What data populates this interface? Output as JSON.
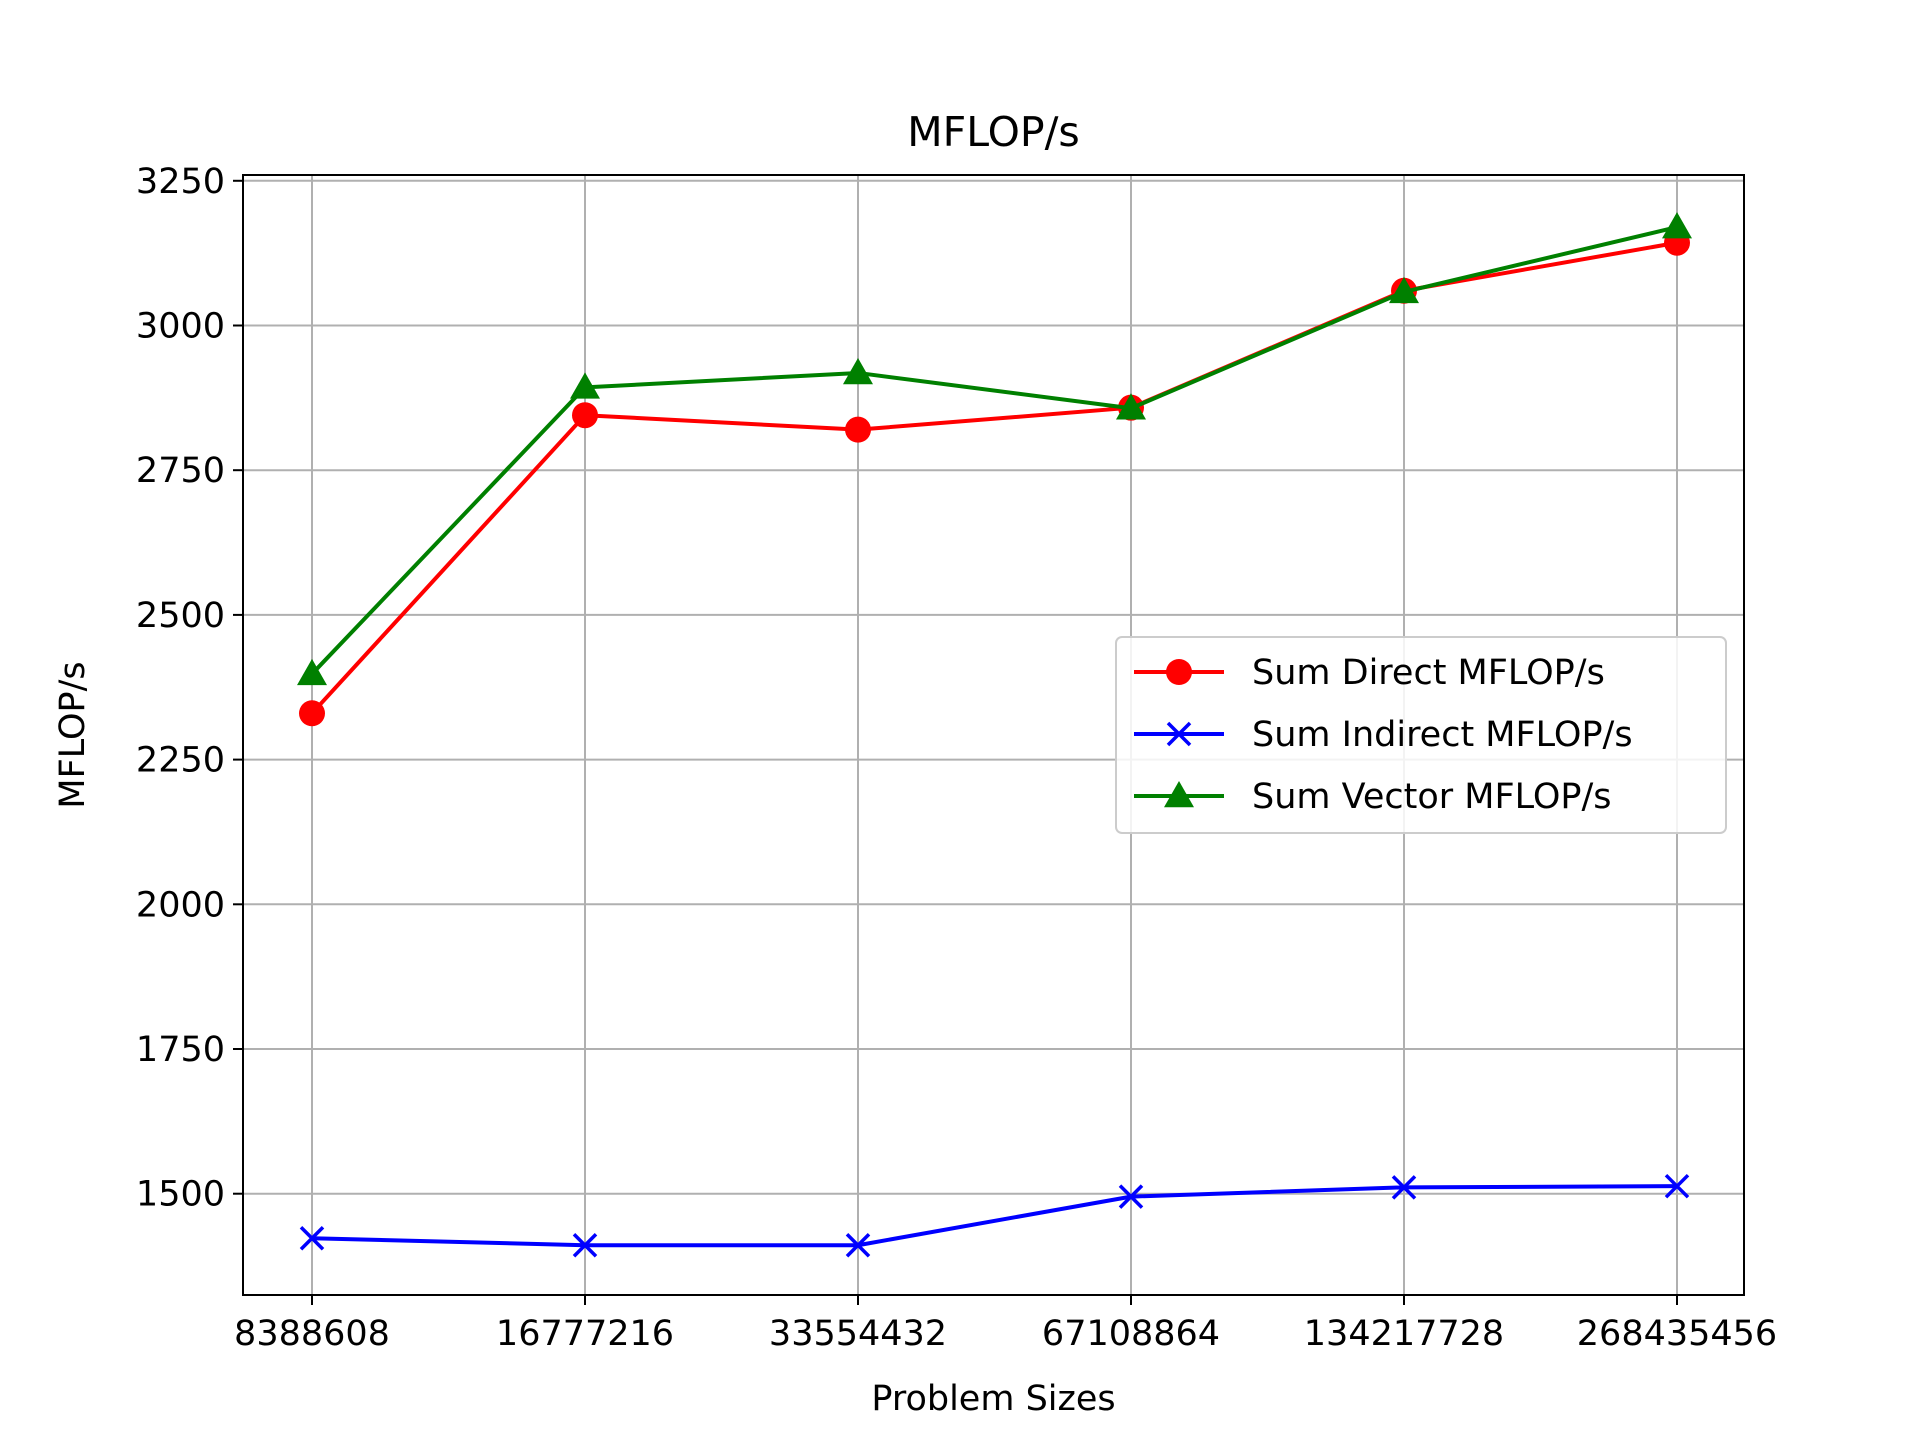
{
  "chart_data": {
    "type": "line",
    "title": "MFLOP/s",
    "xlabel": "Problem Sizes",
    "ylabel": "MFLOP/s",
    "categories": [
      "8388608",
      "16777216",
      "33554432",
      "67108864",
      "134217728",
      "268435456"
    ],
    "yticks": [
      1500,
      1750,
      2000,
      2250,
      2500,
      2750,
      3000,
      3250
    ],
    "ylim": [
      1325,
      3260
    ],
    "grid": true,
    "legend_position": "center-right",
    "series": [
      {
        "name": "Sum Direct MFLOP/s",
        "color": "#ff0000",
        "marker": "circle",
        "values": [
          2330,
          2845,
          2820,
          2858,
          3060,
          3143
        ]
      },
      {
        "name": "Sum Indirect MFLOP/s",
        "color": "#0000ff",
        "marker": "x",
        "values": [
          1423,
          1411,
          1411,
          1495,
          1511,
          1513
        ]
      },
      {
        "name": "Sum Vector MFLOP/s",
        "color": "#008000",
        "marker": "triangle",
        "values": [
          2398,
          2893,
          2918,
          2857,
          3058,
          3170
        ]
      }
    ]
  }
}
